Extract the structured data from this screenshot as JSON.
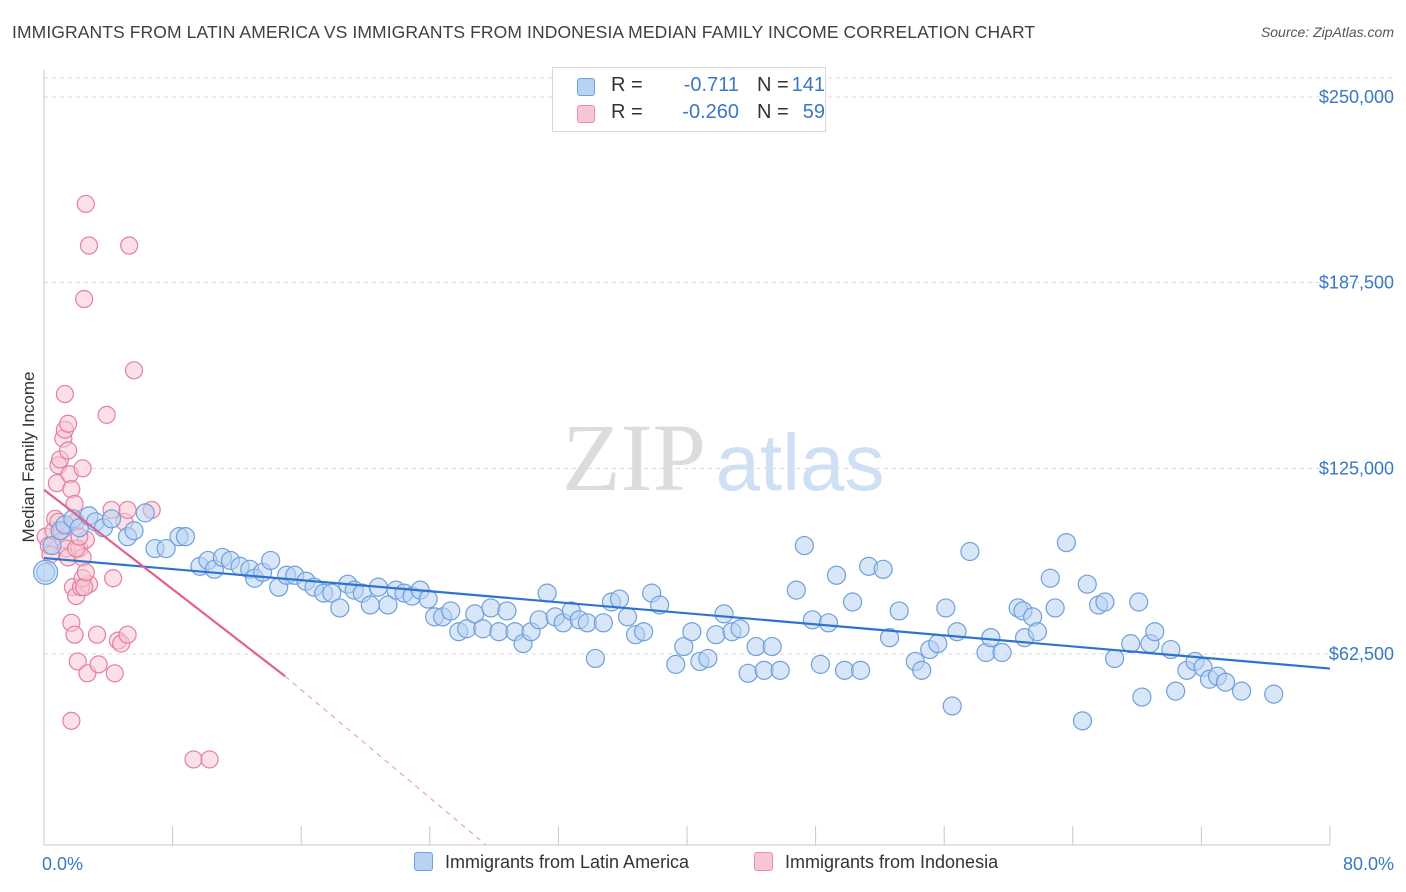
{
  "title": "IMMIGRANTS FROM LATIN AMERICA VS IMMIGRANTS FROM INDONESIA MEDIAN FAMILY INCOME CORRELATION CHART",
  "source": "Source: ZipAtlas.com",
  "watermark": {
    "zip": "ZIP",
    "atlas": "atlas"
  },
  "legend": {
    "r_label": "R =",
    "n_label": "N =",
    "rows": [
      {
        "r": "-0.711",
        "n": "141",
        "fill": "#b8d2f2",
        "stroke": "#6fa0dc"
      },
      {
        "r": "-0.260",
        "n": "59",
        "fill": "#f7c6d4",
        "stroke": "#e890ab"
      }
    ]
  },
  "colors": {
    "blue": "#3a78c3",
    "blue_fill": "#b8d2f2",
    "blue_line": "#2f73d0",
    "pink_fill": "#f7c6d4",
    "pink_stroke": "#e57fa1",
    "pink_line": "#e0628f",
    "grid": "#d9d9d9"
  },
  "chart_data": {
    "type": "scatter",
    "title": "IMMIGRANTS FROM LATIN AMERICA VS IMMIGRANTS FROM INDONESIA MEDIAN FAMILY INCOME CORRELATION CHART",
    "xlabel": "",
    "ylabel": "Median Family Income",
    "xlim": [
      0,
      80
    ],
    "ylim": [
      0,
      255000
    ],
    "x_tick_labels": [
      "0.0%",
      "80.0%"
    ],
    "y_ticks": [
      62500,
      125000,
      187500,
      250000
    ],
    "y_tick_labels": [
      "$62,500",
      "$125,000",
      "$187,500",
      "$250,000"
    ],
    "grid": true,
    "series": [
      {
        "name": "Immigrants from Latin America",
        "r": -0.711,
        "n": 141,
        "trend": {
          "x0": 0,
          "y0": 94800,
          "x1": 80,
          "y1": 57600
        },
        "points": [
          [
            0.1,
            90000
          ],
          [
            0.5,
            99000
          ],
          [
            1.0,
            104000
          ],
          [
            1.3,
            106000
          ],
          [
            1.8,
            108000
          ],
          [
            2.2,
            105000
          ],
          [
            2.8,
            109000
          ],
          [
            3.2,
            107000
          ],
          [
            3.7,
            105000
          ],
          [
            4.2,
            108000
          ],
          [
            5.2,
            102000
          ],
          [
            5.6,
            104000
          ],
          [
            6.3,
            110000
          ],
          [
            6.9,
            98000
          ],
          [
            7.6,
            98000
          ],
          [
            8.4,
            102000
          ],
          [
            8.8,
            102000
          ],
          [
            9.7,
            92000
          ],
          [
            10.2,
            94000
          ],
          [
            10.6,
            91000
          ],
          [
            11.1,
            95000
          ],
          [
            11.6,
            94000
          ],
          [
            12.2,
            92000
          ],
          [
            12.8,
            91000
          ],
          [
            13.1,
            88000
          ],
          [
            13.6,
            90000
          ],
          [
            14.1,
            94000
          ],
          [
            14.6,
            85000
          ],
          [
            15.1,
            89000
          ],
          [
            15.6,
            89000
          ],
          [
            16.3,
            87000
          ],
          [
            16.8,
            85000
          ],
          [
            17.4,
            83000
          ],
          [
            17.9,
            83000
          ],
          [
            18.4,
            78000
          ],
          [
            18.9,
            86000
          ],
          [
            19.3,
            84000
          ],
          [
            19.8,
            83000
          ],
          [
            20.3,
            79000
          ],
          [
            20.8,
            85000
          ],
          [
            21.4,
            79000
          ],
          [
            21.9,
            84000
          ],
          [
            22.4,
            83000
          ],
          [
            22.9,
            82000
          ],
          [
            23.4,
            84000
          ],
          [
            23.9,
            81000
          ],
          [
            24.3,
            75000
          ],
          [
            24.8,
            75000
          ],
          [
            25.3,
            77000
          ],
          [
            25.8,
            70000
          ],
          [
            26.3,
            71000
          ],
          [
            26.8,
            76000
          ],
          [
            27.3,
            71000
          ],
          [
            27.8,
            78000
          ],
          [
            28.3,
            70000
          ],
          [
            28.8,
            77000
          ],
          [
            29.3,
            70000
          ],
          [
            29.8,
            66000
          ],
          [
            30.3,
            70000
          ],
          [
            30.8,
            74000
          ],
          [
            31.3,
            83000
          ],
          [
            31.8,
            75000
          ],
          [
            32.3,
            73000
          ],
          [
            32.8,
            77000
          ],
          [
            33.3,
            74000
          ],
          [
            33.8,
            73000
          ],
          [
            34.3,
            61000
          ],
          [
            34.8,
            73000
          ],
          [
            35.3,
            80000
          ],
          [
            35.8,
            81000
          ],
          [
            36.3,
            75000
          ],
          [
            36.8,
            69000
          ],
          [
            37.3,
            70000
          ],
          [
            37.8,
            83000
          ],
          [
            38.3,
            79000
          ],
          [
            39.3,
            59000
          ],
          [
            39.8,
            65000
          ],
          [
            40.3,
            70000
          ],
          [
            40.8,
            60000
          ],
          [
            41.3,
            61000
          ],
          [
            41.8,
            69000
          ],
          [
            42.3,
            76000
          ],
          [
            42.8,
            70000
          ],
          [
            43.3,
            71000
          ],
          [
            43.8,
            56000
          ],
          [
            44.3,
            65000
          ],
          [
            44.8,
            57000
          ],
          [
            45.3,
            65000
          ],
          [
            45.8,
            57000
          ],
          [
            46.8,
            84000
          ],
          [
            47.3,
            99000
          ],
          [
            47.8,
            74000
          ],
          [
            48.3,
            59000
          ],
          [
            48.8,
            73000
          ],
          [
            49.3,
            89000
          ],
          [
            49.8,
            57000
          ],
          [
            50.3,
            80000
          ],
          [
            50.8,
            57000
          ],
          [
            51.3,
            92000
          ],
          [
            52.2,
            91000
          ],
          [
            52.6,
            68000
          ],
          [
            53.2,
            77000
          ],
          [
            54.2,
            60000
          ],
          [
            54.6,
            57000
          ],
          [
            55.1,
            64000
          ],
          [
            55.6,
            66000
          ],
          [
            56.1,
            78000
          ],
          [
            56.5,
            45000
          ],
          [
            56.8,
            70000
          ],
          [
            57.6,
            97000
          ],
          [
            58.6,
            63000
          ],
          [
            58.9,
            68000
          ],
          [
            59.6,
            63000
          ],
          [
            60.6,
            78000
          ],
          [
            60.9,
            77000
          ],
          [
            61.0,
            68000
          ],
          [
            61.5,
            75000
          ],
          [
            61.8,
            70000
          ],
          [
            62.6,
            88000
          ],
          [
            62.9,
            78000
          ],
          [
            63.6,
            100000
          ],
          [
            64.6,
            40000
          ],
          [
            64.9,
            86000
          ],
          [
            65.6,
            79000
          ],
          [
            66.0,
            80000
          ],
          [
            66.6,
            61000
          ],
          [
            67.6,
            66000
          ],
          [
            68.1,
            80000
          ],
          [
            68.3,
            48000
          ],
          [
            68.8,
            66000
          ],
          [
            69.1,
            70000
          ],
          [
            70.1,
            64000
          ],
          [
            70.4,
            50000
          ],
          [
            71.1,
            57000
          ],
          [
            71.6,
            60000
          ],
          [
            72.1,
            58000
          ],
          [
            72.5,
            54000
          ],
          [
            73.0,
            55000
          ],
          [
            73.5,
            53000
          ],
          [
            74.5,
            50000
          ],
          [
            76.5,
            49000
          ]
        ]
      },
      {
        "name": "Immigrants from Indonesia",
        "r": -0.26,
        "n": 59,
        "trend": {
          "x0": 0,
          "y0": 117800,
          "x1": 15,
          "y1": 55000,
          "dash_x1": 27.5,
          "dash_y1": 0
        },
        "points": [
          [
            0.1,
            102000
          ],
          [
            0.3,
            99000
          ],
          [
            0.4,
            96000
          ],
          [
            0.6,
            104000
          ],
          [
            0.7,
            108000
          ],
          [
            0.9,
            107000
          ],
          [
            1.1,
            104000
          ],
          [
            1.2,
            101000
          ],
          [
            1.4,
            98000
          ],
          [
            1.5,
            95000
          ],
          [
            0.8,
            120000
          ],
          [
            0.9,
            126000
          ],
          [
            1.0,
            128000
          ],
          [
            1.2,
            135000
          ],
          [
            1.3,
            138000
          ],
          [
            1.5,
            131000
          ],
          [
            1.6,
            123000
          ],
          [
            1.7,
            118000
          ],
          [
            1.9,
            113000
          ],
          [
            2.0,
            107000
          ],
          [
            2.2,
            98000
          ],
          [
            2.4,
            95000
          ],
          [
            2.6,
            101000
          ],
          [
            2.8,
            86000
          ],
          [
            1.8,
            85000
          ],
          [
            2.0,
            82000
          ],
          [
            2.3,
            85000
          ],
          [
            2.4,
            88000
          ],
          [
            2.5,
            85000
          ],
          [
            2.6,
            90000
          ],
          [
            1.7,
            73000
          ],
          [
            1.9,
            69000
          ],
          [
            2.1,
            60000
          ],
          [
            2.7,
            56000
          ],
          [
            3.3,
            69000
          ],
          [
            3.4,
            59000
          ],
          [
            4.2,
            111000
          ],
          [
            5.0,
            107000
          ],
          [
            5.2,
            111000
          ],
          [
            4.3,
            88000
          ],
          [
            4.4,
            56000
          ],
          [
            4.6,
            67000
          ],
          [
            4.8,
            66000
          ],
          [
            5.2,
            69000
          ],
          [
            1.7,
            40000
          ],
          [
            2.0,
            98000
          ],
          [
            2.2,
            102000
          ],
          [
            2.6,
            214000
          ],
          [
            2.8,
            200000
          ],
          [
            2.5,
            182000
          ],
          [
            5.3,
            200000
          ],
          [
            5.6,
            158000
          ],
          [
            1.3,
            150000
          ],
          [
            3.9,
            143000
          ],
          [
            6.7,
            111000
          ],
          [
            9.3,
            27000
          ],
          [
            10.3,
            27000
          ],
          [
            1.5,
            140000
          ],
          [
            2.4,
            125000
          ]
        ]
      }
    ]
  },
  "axis": {
    "y_title": "Median Family Income",
    "x_min_label": "0.0%",
    "x_max_label": "80.0%"
  }
}
